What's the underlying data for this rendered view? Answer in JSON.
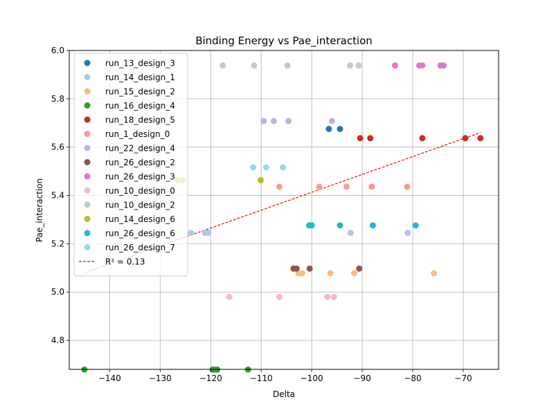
{
  "chart_data": {
    "type": "scatter",
    "title": "Binding Energy vs Pae_interaction",
    "xlabel": "Delta",
    "ylabel": "Pae_interaction",
    "xlim": [
      -148,
      -63
    ],
    "ylim": [
      4.68,
      6.0
    ],
    "xticks": [
      -140,
      -130,
      -120,
      -110,
      -100,
      -90,
      -80,
      -70
    ],
    "yticks": [
      4.8,
      5.0,
      5.2,
      5.4,
      5.6,
      5.8,
      6.0
    ],
    "xtick_labels": [
      "−140",
      "−130",
      "−120",
      "−110",
      "−100",
      "−90",
      "−80",
      "−70"
    ],
    "ytick_labels": [
      "4.8",
      "5.0",
      "5.2",
      "5.4",
      "5.6",
      "5.8",
      "6.0"
    ],
    "grid": true,
    "legend_position": "upper-left",
    "series": [
      {
        "name": "run_13_design_3",
        "color": "#1f77b4",
        "points": [
          [
            -96.6,
            5.675
          ],
          [
            -94.4,
            5.675
          ]
        ]
      },
      {
        "name": "run_14_design_1",
        "color": "#aec7e8",
        "points": [
          [
            -123.9,
            5.245
          ],
          [
            -121.1,
            5.245
          ],
          [
            -120.5,
            5.245
          ],
          [
            -92.3,
            5.245
          ],
          [
            -81.0,
            5.245
          ]
        ]
      },
      {
        "name": "run_15_design_2",
        "color": "#ffbb78",
        "points": [
          [
            -102.6,
            5.078
          ],
          [
            -101.9,
            5.078
          ],
          [
            -96.3,
            5.078
          ],
          [
            -91.6,
            5.078
          ],
          [
            -75.8,
            5.078
          ]
        ]
      },
      {
        "name": "run_16_design_4",
        "color": "#2ca02c",
        "points": [
          [
            -145.0,
            4.679
          ],
          [
            -119.6,
            4.679
          ],
          [
            -119.2,
            4.679
          ],
          [
            -118.7,
            4.679
          ],
          [
            -112.6,
            4.679
          ]
        ]
      },
      {
        "name": "run_18_design_5",
        "color": "#d62728",
        "points": [
          [
            -90.4,
            5.637
          ],
          [
            -88.4,
            5.637
          ],
          [
            -78.1,
            5.637
          ],
          [
            -69.6,
            5.637
          ],
          [
            -66.6,
            5.637
          ]
        ]
      },
      {
        "name": "run_1_design_0",
        "color": "#ff9896",
        "points": [
          [
            -106.4,
            5.436
          ],
          [
            -98.5,
            5.436
          ],
          [
            -93.1,
            5.436
          ],
          [
            -88.1,
            5.436
          ],
          [
            -81.1,
            5.436
          ]
        ]
      },
      {
        "name": "run_22_design_4",
        "color": "#c5b0d5",
        "points": [
          [
            -109.5,
            5.708
          ],
          [
            -107.5,
            5.708
          ],
          [
            -104.6,
            5.708
          ],
          [
            -96.0,
            5.708
          ]
        ]
      },
      {
        "name": "run_26_design_2",
        "color": "#8c564b",
        "points": [
          [
            -103.6,
            5.097
          ],
          [
            -103.0,
            5.097
          ],
          [
            -100.4,
            5.097
          ],
          [
            -90.6,
            5.097
          ]
        ]
      },
      {
        "name": "run_26_design_3",
        "color": "#e377c2",
        "points": [
          [
            -83.5,
            5.938
          ],
          [
            -78.7,
            5.938
          ],
          [
            -78.1,
            5.938
          ],
          [
            -74.5,
            5.938
          ],
          [
            -73.9,
            5.938
          ]
        ]
      },
      {
        "name": "run_10_design_0",
        "color": "#f7b6d2",
        "points": [
          [
            -116.3,
            4.98
          ],
          [
            -106.4,
            4.98
          ],
          [
            -96.9,
            4.98
          ],
          [
            -95.6,
            4.98
          ]
        ]
      },
      {
        "name": "run_10_design_2",
        "color": "#c7c7c7",
        "points": [
          [
            -117.6,
            5.938
          ],
          [
            -111.4,
            5.938
          ],
          [
            -104.8,
            5.938
          ],
          [
            -92.4,
            5.938
          ],
          [
            -90.7,
            5.938
          ]
        ]
      },
      {
        "name": "run_14_design_6",
        "color": "#bcbd22",
        "points": [
          [
            -126.5,
            5.463
          ],
          [
            -125.5,
            5.463
          ],
          [
            -110.1,
            5.463
          ]
        ]
      },
      {
        "name": "run_26_design_6",
        "color": "#17becf",
        "points": [
          [
            -100.5,
            5.276
          ],
          [
            -100.0,
            5.276
          ],
          [
            -94.4,
            5.276
          ],
          [
            -87.9,
            5.276
          ],
          [
            -79.4,
            5.276
          ]
        ]
      },
      {
        "name": "run_26_design_7",
        "color": "#9edae5",
        "points": [
          [
            -111.6,
            5.516
          ],
          [
            -109.0,
            5.516
          ],
          [
            -105.7,
            5.516
          ]
        ]
      }
    ],
    "trendline": {
      "name": "R² = 0.13",
      "color": "#ff0000",
      "style": "dashed",
      "points": [
        [
          -145.0,
          5.08
        ],
        [
          -66.6,
          5.66
        ]
      ]
    }
  }
}
